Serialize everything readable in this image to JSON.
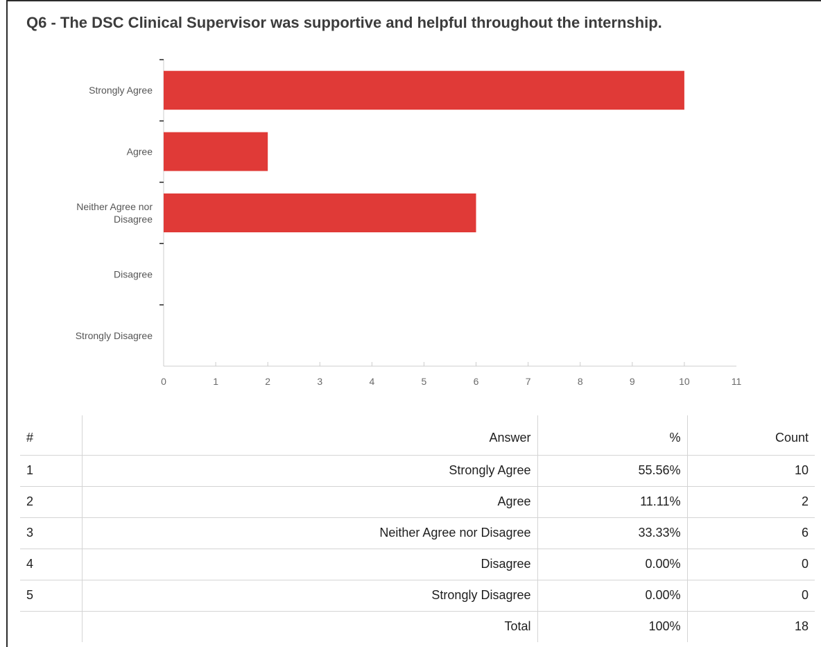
{
  "title": "Q6 - The DSC Clinical Supervisor was supportive and helpful throughout the internship.",
  "colors": {
    "bar": "#e03a37",
    "axis": "#cccccc",
    "tick_mark": "#222222"
  },
  "chart_data": {
    "type": "bar",
    "orientation": "horizontal",
    "categories": [
      [
        "Strongly Agree"
      ],
      [
        "Agree"
      ],
      [
        "Neither Agree nor",
        "Disagree"
      ],
      [
        "Disagree"
      ],
      [
        "Strongly Disagree"
      ]
    ],
    "values": [
      10,
      2,
      6,
      0,
      0
    ],
    "xlim": [
      0,
      11
    ],
    "xticks": [
      0,
      1,
      2,
      3,
      4,
      5,
      6,
      7,
      8,
      9,
      10,
      11
    ],
    "grid": false,
    "legend": "none"
  },
  "table": {
    "headers": {
      "num": "#",
      "answer": "Answer",
      "pct": "%",
      "count": "Count"
    },
    "rows": [
      {
        "num": "1",
        "answer": "Strongly Agree",
        "pct": "55.56%",
        "count": "10"
      },
      {
        "num": "2",
        "answer": "Agree",
        "pct": "11.11%",
        "count": "2"
      },
      {
        "num": "3",
        "answer": "Neither Agree nor Disagree",
        "pct": "33.33%",
        "count": "6"
      },
      {
        "num": "4",
        "answer": "Disagree",
        "pct": "0.00%",
        "count": "0"
      },
      {
        "num": "5",
        "answer": "Strongly Disagree",
        "pct": "0.00%",
        "count": "0"
      }
    ],
    "total": {
      "num": "",
      "answer": "Total",
      "pct": "100%",
      "count": "18"
    }
  }
}
